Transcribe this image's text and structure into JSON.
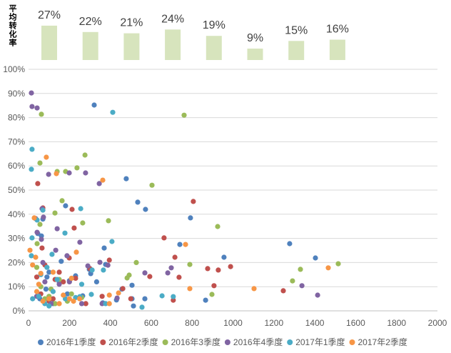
{
  "chart_data": [
    {
      "type": "bar",
      "title": "平均转化率",
      "values": [
        27,
        22,
        21,
        24,
        19,
        9,
        15,
        16
      ],
      "labels": [
        "27%",
        "22%",
        "21%",
        "24%",
        "19%",
        "9%",
        "15%",
        "16%"
      ],
      "color": "#D7E4BD"
    },
    {
      "type": "scatter",
      "title": "",
      "xlabel": "",
      "ylabel": "",
      "xlim": [
        0,
        2000
      ],
      "ylim": [
        0,
        100
      ],
      "xticks": [
        0,
        200,
        400,
        600,
        800,
        1000,
        1200,
        1400,
        1600,
        1800,
        2000
      ],
      "xtick_labels": [
        "0",
        "200",
        "400",
        "600",
        "800",
        "1000",
        "1200",
        "1400",
        "1600",
        "1800",
        "2000"
      ],
      "yticks": [
        0,
        10,
        20,
        30,
        40,
        50,
        60,
        70,
        80,
        90,
        100
      ],
      "ytick_labels": [
        "0%",
        "10%",
        "20%",
        "30%",
        "40%",
        "50%",
        "60%",
        "70%",
        "80%",
        "90%",
        "100%"
      ],
      "grid": true,
      "gridline_color": "#D9D9D9",
      "axis_color": "#BFBFBF",
      "series": [
        {
          "name": "2016年1季度",
          "color": "#4F81BD",
          "points": [
            [
              321,
              85.2
            ],
            [
              478,
              54.7
            ],
            [
              534,
              45
            ],
            [
              572,
              42
            ],
            [
              792,
              38.5
            ],
            [
              740,
              27.5
            ],
            [
              1277,
              27.8
            ],
            [
              1403,
              21.9
            ],
            [
              956,
              22.2
            ],
            [
              370,
              26
            ],
            [
              377,
              19.2
            ],
            [
              297,
              17.2
            ],
            [
              304,
              15.4
            ],
            [
              181,
              43.5
            ],
            [
              45,
              32
            ],
            [
              63,
              31
            ],
            [
              70,
              38
            ],
            [
              90,
              14
            ],
            [
              150,
              12
            ],
            [
              200,
              12.5
            ],
            [
              265,
              6.2
            ],
            [
              363,
              3.3
            ],
            [
              333,
              12
            ],
            [
              430,
              4.5
            ],
            [
              513,
              2
            ],
            [
              506,
              5
            ],
            [
              569,
              5
            ],
            [
              506,
              10.6
            ],
            [
              457,
              9
            ],
            [
              866,
              4.4
            ],
            [
              100,
              16
            ],
            [
              160,
              20.5
            ],
            [
              230,
              14.5
            ],
            [
              55,
              5
            ],
            [
              120,
              3
            ],
            [
              85,
              9
            ],
            [
              190,
              7
            ]
          ]
        },
        {
          "name": "2016年2季度",
          "color": "#C0504D",
          "points": [
            [
              806,
              45.3
            ],
            [
              663,
              30.2
            ],
            [
              716,
              22.2
            ],
            [
              736,
              13.9
            ],
            [
              708,
              4.4
            ],
            [
              593,
              14.2
            ],
            [
              461,
              9.2
            ],
            [
              1246,
              8.3
            ],
            [
              907,
              10.4
            ],
            [
              876,
              17.5
            ],
            [
              928,
              16.9
            ],
            [
              988,
              18.3
            ],
            [
              395,
              21
            ],
            [
              199,
              21.9
            ],
            [
              223,
              34.3
            ],
            [
              213,
              42
            ],
            [
              70,
              42.6
            ],
            [
              45,
              52.7
            ],
            [
              66,
              26
            ],
            [
              80,
              19
            ],
            [
              130,
              13
            ],
            [
              170,
              12
            ],
            [
              230,
              13.5
            ],
            [
              500,
              5
            ],
            [
              360,
              6
            ],
            [
              280,
              3
            ],
            [
              120,
              5
            ],
            [
              300,
              17.5
            ],
            [
              60,
              7
            ],
            [
              100,
              4
            ],
            [
              150,
              16
            ],
            [
              40,
              14
            ]
          ]
        },
        {
          "name": "2016年3季度",
          "color": "#9BBB59",
          "points": [
            [
              761,
              81
            ],
            [
              63,
              81.4
            ],
            [
              276,
              64.5
            ],
            [
              56,
              61.2
            ],
            [
              237,
              59.2
            ],
            [
              181,
              57.7
            ],
            [
              140,
              57.7
            ],
            [
              604,
              52
            ],
            [
              925,
              34.9
            ],
            [
              391,
              37.3
            ],
            [
              164,
              45.6
            ],
            [
              129,
              40.5
            ],
            [
              265,
              36.4
            ],
            [
              56,
              35.8
            ],
            [
              42,
              27.8
            ],
            [
              789,
              19.2
            ],
            [
              527,
              20
            ],
            [
              1330,
              17.2
            ],
            [
              1291,
              12.4
            ],
            [
              1515,
              19.5
            ],
            [
              897,
              6.8
            ],
            [
              492,
              14.8
            ],
            [
              482,
              13.6
            ],
            [
              100,
              6
            ],
            [
              130,
              3
            ],
            [
              60,
              10
            ],
            [
              210,
              7
            ],
            [
              260,
              5.5
            ],
            [
              190,
              4
            ],
            [
              150,
              13
            ],
            [
              80,
              5
            ],
            [
              110,
              9
            ],
            [
              40,
              18
            ]
          ]
        },
        {
          "name": "2016年4季度",
          "color": "#8064A2",
          "points": [
            [
              14,
              90.2
            ],
            [
              17,
              84.6
            ],
            [
              42,
              84
            ],
            [
              98,
              56.5
            ],
            [
              199,
              57.1
            ],
            [
              279,
              57.1
            ],
            [
              346,
              52.7
            ],
            [
              66,
              42.3
            ],
            [
              73,
              38.8
            ],
            [
              35,
              38.2
            ],
            [
              140,
              34
            ],
            [
              42,
              32.5
            ],
            [
              63,
              29.6
            ],
            [
              251,
              28.4
            ],
            [
              133,
              25.1
            ],
            [
              188,
              22.8
            ],
            [
              349,
              20.1
            ],
            [
              388,
              18.9
            ],
            [
              290,
              18.6
            ],
            [
              1337,
              10.4
            ],
            [
              1414,
              6.5
            ],
            [
              698,
              17.8
            ],
            [
              681,
              15.7
            ],
            [
              569,
              15.7
            ],
            [
              200,
              12
            ],
            [
              150,
              11
            ],
            [
              80,
              12
            ],
            [
              40,
              6
            ],
            [
              110,
              3
            ],
            [
              260,
              3
            ],
            [
              360,
              3
            ],
            [
              433,
              5.3
            ],
            [
              70,
              20
            ]
          ]
        },
        {
          "name": "2017年1季度",
          "color": "#4BACC6",
          "points": [
            [
              412,
              82.2
            ],
            [
              17,
              66.9
            ],
            [
              14,
              58.6
            ],
            [
              255,
              42.3
            ],
            [
              70,
              41.7
            ],
            [
              42,
              37.6
            ],
            [
              178,
              32.2
            ],
            [
              17,
              30.2
            ],
            [
              408,
              28.7
            ],
            [
              115,
              23.4
            ],
            [
              14,
              22.8
            ],
            [
              366,
              16.9
            ],
            [
              311,
              16.9
            ],
            [
              377,
              3
            ],
            [
              307,
              6.8
            ],
            [
              251,
              5.9
            ],
            [
              653,
              6.2
            ],
            [
              708,
              5.9
            ],
            [
              555,
              1.5
            ],
            [
              120,
              8
            ],
            [
              180,
              5
            ],
            [
              100,
              2
            ],
            [
              50,
              6
            ],
            [
              80,
              3
            ],
            [
              20,
              5
            ],
            [
              140,
              13
            ],
            [
              90,
              18
            ],
            [
              230,
              5.5
            ],
            [
              260,
              11
            ],
            [
              60,
              15
            ]
          ]
        },
        {
          "name": "2017年2季度",
          "color": "#F79646",
          "points": [
            [
              87,
              63.6
            ],
            [
              136,
              56.8
            ],
            [
              363,
              54.1
            ],
            [
              28,
              38.5
            ],
            [
              7,
              25.1
            ],
            [
              35,
              22.2
            ],
            [
              234,
              24.3
            ],
            [
              768,
              27.5
            ],
            [
              1466,
              17.8
            ],
            [
              1103,
              9.2
            ],
            [
              789,
              9.2
            ],
            [
              440,
              7.4
            ],
            [
              395,
              6.5
            ],
            [
              395,
              3
            ],
            [
              220,
              4
            ],
            [
              200,
              5
            ],
            [
              150,
              3
            ],
            [
              100,
              5
            ],
            [
              70,
              4
            ],
            [
              40,
              8
            ],
            [
              50,
              11
            ],
            [
              20,
              19
            ],
            [
              210,
              13.5
            ],
            [
              60,
              15.5
            ],
            [
              120,
              16
            ],
            [
              250,
              5
            ],
            [
              170,
              6.5
            ]
          ]
        }
      ]
    }
  ]
}
